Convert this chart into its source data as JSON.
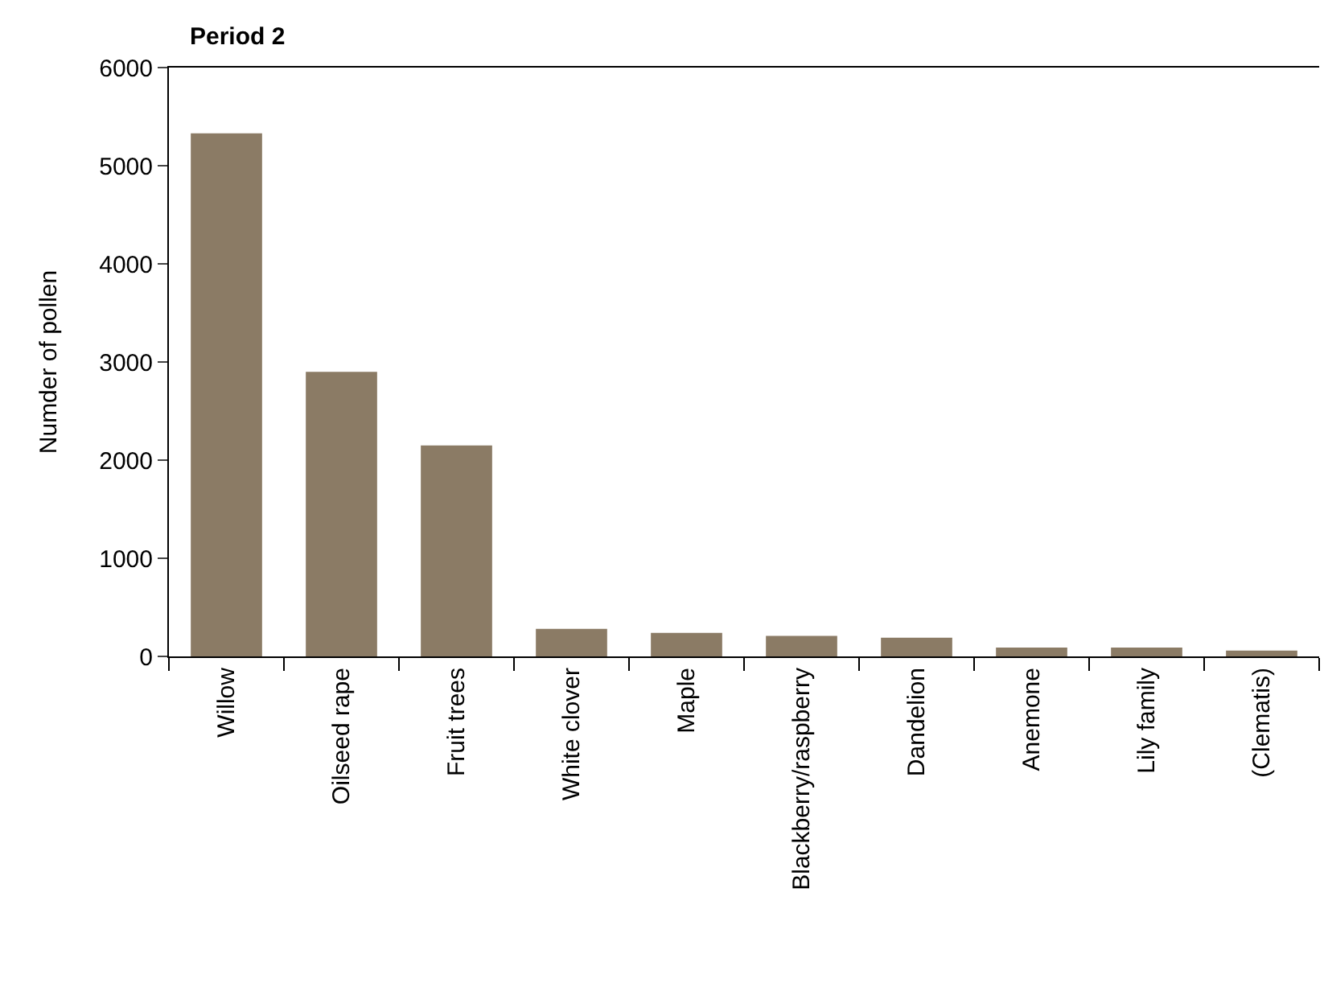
{
  "chart_data": {
    "type": "bar",
    "title": "Period 2",
    "ylabel": "Numder of pollen",
    "categories": [
      "Willow",
      "Oilseed rape",
      "Fruit trees",
      "White clover",
      "Maple",
      "Blackberry/raspberry",
      "Dandelion",
      "Anemone",
      "Lily family",
      "(Clematis)"
    ],
    "values": [
      5330,
      2900,
      2150,
      280,
      240,
      210,
      190,
      90,
      90,
      60
    ],
    "color": "#8b7b65",
    "ylim": [
      0,
      6000
    ],
    "yticks": [
      0,
      1000,
      2000,
      3000,
      4000,
      5000,
      6000
    ],
    "grid": false,
    "legend": false
  }
}
